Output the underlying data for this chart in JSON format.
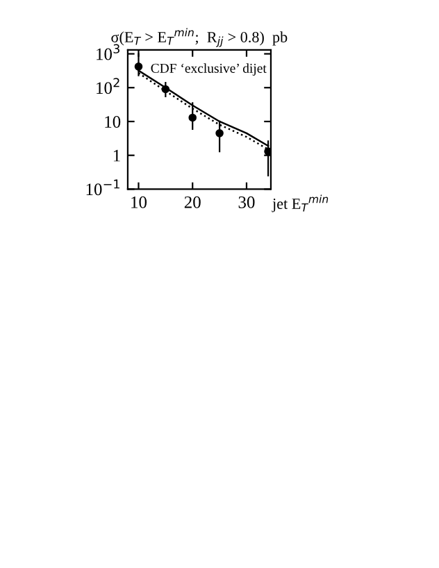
{
  "chart_data": {
    "type": "scatter",
    "title": "σ(E$_{T}$ > E$_{T}$$^{min}$;  R$_{jj}$ > 0.8)  pb",
    "xlabel": "jet E$_{T}$$^{min}$",
    "annotations": [
      "CDF ‘exclusive’ dijet"
    ],
    "log": "y",
    "xlim": [
      8,
      34.5
    ],
    "xticks": [
      10,
      20,
      30
    ],
    "ylim": [
      0.1,
      1300
    ],
    "yticks": [
      {
        "value": 1000,
        "label": "10$^{3}$"
      },
      {
        "value": 100,
        "label": "10$^{2}$"
      },
      {
        "value": 10,
        "label": "10"
      },
      {
        "value": 1,
        "label": "1"
      },
      {
        "value": 0.1,
        "label": "10$^{−1}$"
      }
    ],
    "grid": false,
    "legend": false,
    "series": [
      {
        "color": "#000000",
        "marker": "circle",
        "x": [
          10,
          15,
          20,
          25,
          34
        ],
        "values": [
          420,
          90,
          13,
          4.5,
          1.3
        ],
        "errors": [
          [
            230,
            1000
          ],
          [
            55,
            140
          ],
          [
            6,
            35
          ],
          [
            1.3,
            10
          ],
          [
            0.25,
            2.6
          ]
        ]
      },
      {
        "type": "line",
        "color": "#000000",
        "line_style": "solid",
        "marker": "none",
        "x": [
          10,
          15,
          20,
          25,
          30,
          34
        ],
        "values": [
          320,
          100,
          30,
          10,
          4.5,
          1.9
        ]
      },
      {
        "type": "line",
        "color": "#000000",
        "line_style": "dotted",
        "marker": "none",
        "x": [
          10,
          15,
          20,
          25,
          30,
          34
        ],
        "values": [
          270,
          80,
          24,
          8,
          3.5,
          1.5
        ]
      }
    ]
  }
}
